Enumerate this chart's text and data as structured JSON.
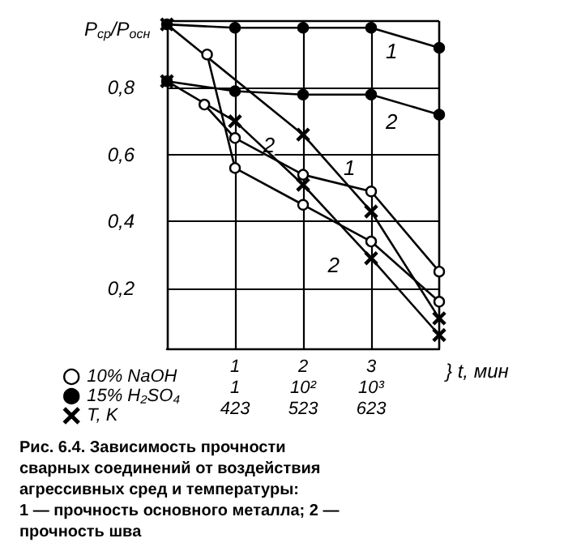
{
  "chart_data": {
    "type": "line",
    "ylabel": "P$_{ср}$/P$_{осн}$",
    "xlabel": "} t, мин",
    "xlim": [
      0,
      4
    ],
    "xticks": [
      1,
      2,
      3
    ],
    "x2lim": [
      323,
      723
    ],
    "x2ticks": [
      423,
      523,
      623
    ],
    "ylim": [
      0.02,
      1.0
    ],
    "yticks": [
      {
        "value": 0.2,
        "label": "0,2"
      },
      {
        "value": 0.4,
        "label": "0,4"
      },
      {
        "value": 0.6,
        "label": "0,6"
      },
      {
        "value": 0.8,
        "label": "0,8"
      }
    ],
    "grid": true,
    "legend": "bottom left",
    "series": [
      {
        "name": "10% NaOH",
        "color": "#ffffff",
        "marker": "circle",
        "x": [
          0.55,
          1,
          2,
          3,
          4
        ],
        "values": [
          0.75,
          0.65,
          0.54,
          0.49,
          0.25
        ]
      },
      {
        "color": "#ffffff",
        "marker": "circle",
        "x": [
          0.59,
          1,
          2,
          3,
          4
        ],
        "values": [
          0.9,
          0.56,
          0.45,
          0.34,
          0.16
        ]
      },
      {
        "name": "15% H₂SO₄",
        "color": "#000000",
        "marker": "circle",
        "x": [
          0,
          1,
          2,
          3,
          4
        ],
        "values": [
          0.99,
          0.98,
          0.98,
          0.98,
          0.92
        ]
      },
      {
        "color": "#000000",
        "marker": "circle",
        "x": [
          0,
          1,
          2,
          3,
          4
        ],
        "values": [
          0.82,
          0.79,
          0.78,
          0.78,
          0.72
        ]
      },
      {
        "name": "T, K",
        "color": "#000000",
        "marker": "cross",
        "x": [
          0,
          2,
          3,
          4
        ],
        "values": [
          0.99,
          0.66,
          0.43,
          0.11
        ]
      },
      {
        "color": "#000000",
        "marker": "cross",
        "x": [
          0,
          1,
          2,
          3,
          4
        ],
        "values": [
          0.82,
          0.7,
          0.51,
          0.29,
          0.06
        ]
      }
    ],
    "annotations": [
      {
        "text": "1",
        "x": 3.3,
        "y": 0.91
      },
      {
        "text": "2",
        "x": 3.3,
        "y": 0.7
      },
      {
        "text": "2",
        "x": 1.5,
        "y": 0.63
      },
      {
        "text": "1",
        "x": 2.68,
        "y": 0.56
      },
      {
        "text": "2",
        "x": 2.45,
        "y": 0.27
      },
      "1",
      "10²",
      "10³",
      "Рис. 6.4. Зависимость прочности сварных соединений от воздействия агрессивных сред и температуры:",
      "1 — прочность основного металла; 2 — прочность шва"
    ]
  }
}
